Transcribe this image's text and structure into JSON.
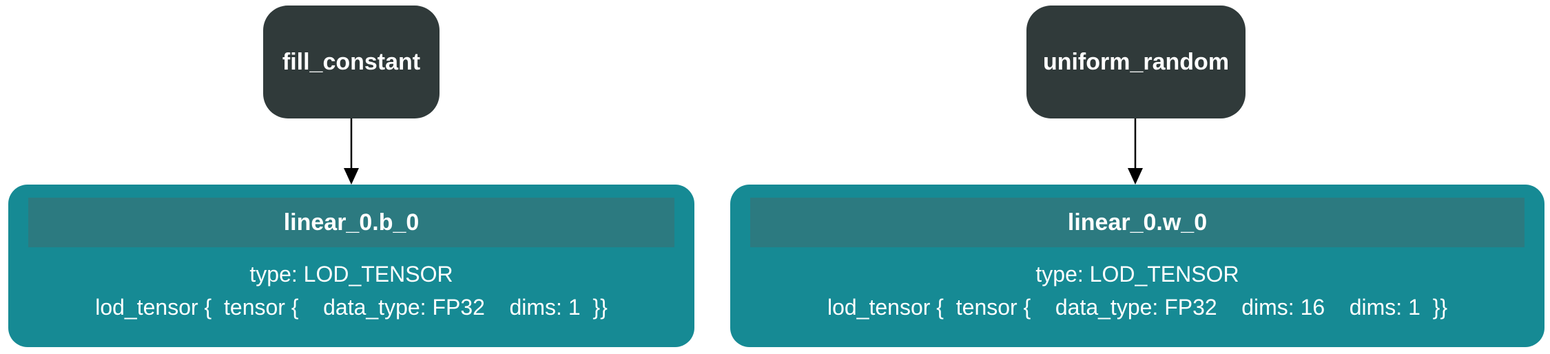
{
  "ops": [
    {
      "label": "fill_constant"
    },
    {
      "label": "uniform_random"
    }
  ],
  "vars": [
    {
      "name": "linear_0.b_0",
      "type_line": "type: LOD_TENSOR",
      "detail_line": "lod_tensor {  tensor {    data_type: FP32    dims: 1  }}"
    },
    {
      "name": "linear_0.w_0",
      "type_line": "type: LOD_TENSOR",
      "detail_line": "lod_tensor {  tensor {    data_type: FP32    dims: 16    dims: 1  }}"
    }
  ],
  "colors": {
    "op_fill": "#303a3a",
    "var_fill": "#168a94",
    "var_header_fill": "#2c7a80",
    "edge": "#000000",
    "text": "#ffffff"
  }
}
